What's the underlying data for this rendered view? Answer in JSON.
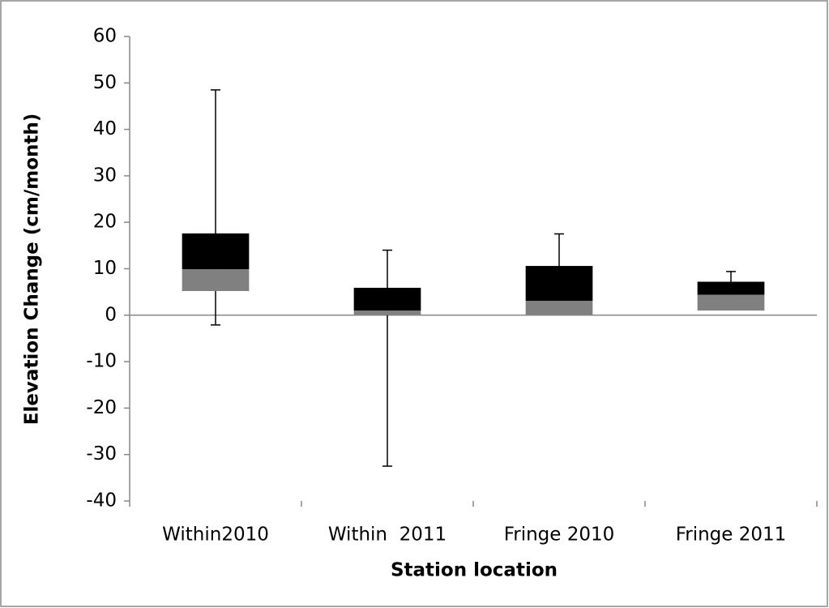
{
  "chart_data": {
    "type": "box",
    "xlabel": "Station location",
    "ylabel": "Elevation Change (cm/month)",
    "categories": [
      "Within2010",
      "Within  2011",
      "Fringe 2010",
      "Fringe 2011"
    ],
    "min": [
      -2.1,
      -32.5,
      2.3,
      3.5
    ],
    "q1": [
      5.2,
      0,
      0,
      1.0
    ],
    "median": [
      9.9,
      1.0,
      3.1,
      4.4
    ],
    "q3": [
      17.6,
      5.9,
      10.6,
      7.2
    ],
    "max": [
      48.5,
      14.0,
      17.5,
      9.4
    ],
    "lower_color": "#808080",
    "upper_color": "#000000",
    "ylim": [
      -40,
      60
    ],
    "yticks": [
      -40,
      -30,
      -20,
      -10,
      0,
      10,
      20,
      30,
      40,
      50,
      60
    ]
  }
}
